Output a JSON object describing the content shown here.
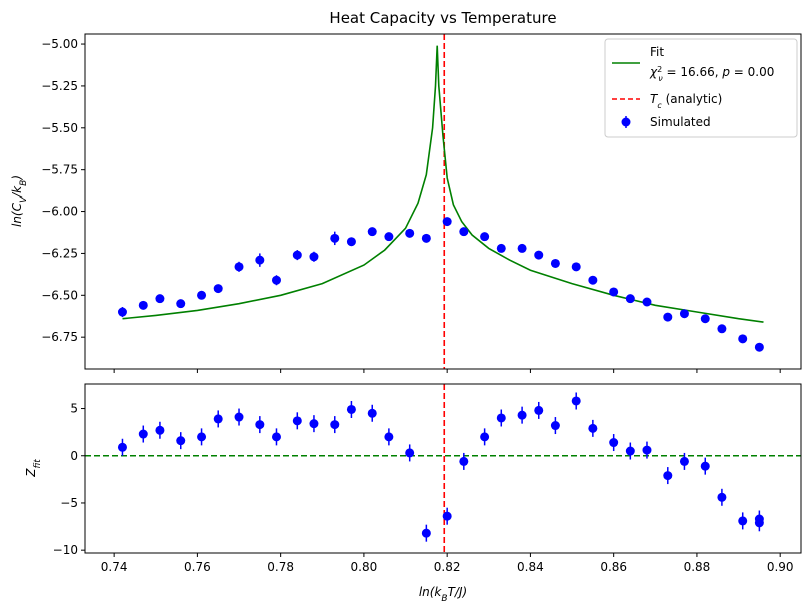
{
  "colors": {
    "fit": "#008000",
    "tc": "#ff0000",
    "sim": "#0000ff",
    "zero": "#008000"
  },
  "chart_data": [
    {
      "type": "scatter",
      "title": "Heat Capacity vs Temperature",
      "xlabel": "",
      "ylabel": "ln(C_V/k_B)",
      "xlim": [
        0.733,
        0.905
      ],
      "ylim": [
        -6.94,
        -4.94
      ],
      "yticks": [
        -6.75,
        -6.5,
        -6.25,
        -6.0,
        -5.75,
        -5.5,
        -5.25,
        -5.0
      ],
      "ytick_labels": [
        "−6.75",
        "−6.50",
        "−6.25",
        "−6.00",
        "−5.75",
        "−5.50",
        "−5.25",
        "−5.00"
      ],
      "xticks": [
        0.74,
        0.76,
        0.78,
        0.8,
        0.82,
        0.84,
        0.86,
        0.88,
        0.9
      ],
      "legend": {
        "position": "top-right",
        "fit_label": "Fit",
        "fit_stats": "χ²_ν = 16.66, p = 0.00",
        "tc_label": "T_c (analytic)",
        "sim_label": "Simulated"
      },
      "tc": 0.8193,
      "simulated": {
        "x": [
          0.742,
          0.747,
          0.751,
          0.756,
          0.761,
          0.765,
          0.77,
          0.775,
          0.779,
          0.784,
          0.788,
          0.793,
          0.797,
          0.802,
          0.806,
          0.811,
          0.815,
          0.82,
          0.824,
          0.829,
          0.833,
          0.838,
          0.842,
          0.846,
          0.851,
          0.855,
          0.86,
          0.864,
          0.868,
          0.873,
          0.877,
          0.882,
          0.886,
          0.891,
          0.895
        ],
        "y": [
          -6.6,
          -6.56,
          -6.52,
          -6.55,
          -6.5,
          -6.46,
          -6.33,
          -6.29,
          -6.41,
          -6.26,
          -6.27,
          -6.16,
          -6.18,
          -6.12,
          -6.15,
          -6.13,
          -6.16,
          -6.06,
          -6.12,
          -6.15,
          -6.22,
          -6.22,
          -6.26,
          -6.31,
          -6.33,
          -6.41,
          -6.48,
          -6.52,
          -6.54,
          -6.63,
          -6.61,
          -6.64,
          -6.7,
          -6.76,
          -6.81
        ],
        "yerr": [
          0.03,
          0.02,
          0.02,
          0.02,
          0.02,
          0.02,
          0.03,
          0.04,
          0.03,
          0.03,
          0.03,
          0.04,
          0.02,
          0.02,
          0.02,
          0.02,
          0.02,
          0.02,
          0.02,
          0.02,
          0.02,
          0.02,
          0.02,
          0.02,
          0.02,
          0.02,
          0.02,
          0.02,
          0.02,
          0.02,
          0.02,
          0.02,
          0.02,
          0.02,
          0.02
        ]
      },
      "fit": {
        "x": [
          0.742,
          0.75,
          0.76,
          0.77,
          0.78,
          0.79,
          0.8,
          0.805,
          0.81,
          0.813,
          0.815,
          0.8165,
          0.8172,
          0.8176,
          0.818,
          0.819,
          0.82,
          0.8215,
          0.8235,
          0.826,
          0.83,
          0.835,
          0.84,
          0.85,
          0.86,
          0.87,
          0.88,
          0.89,
          0.896
        ],
        "y": [
          -6.64,
          -6.62,
          -6.59,
          -6.55,
          -6.5,
          -6.43,
          -6.32,
          -6.23,
          -6.1,
          -5.95,
          -5.78,
          -5.5,
          -5.25,
          -5.01,
          -5.25,
          -5.55,
          -5.8,
          -5.96,
          -6.06,
          -6.14,
          -6.22,
          -6.29,
          -6.35,
          -6.43,
          -6.5,
          -6.56,
          -6.6,
          -6.64,
          -6.66
        ]
      }
    },
    {
      "type": "scatter",
      "xlabel": "ln(k_B T/J)",
      "ylabel": "Z_fit",
      "xlim": [
        0.733,
        0.905
      ],
      "ylim": [
        -10.3,
        7.6
      ],
      "yticks": [
        -10,
        -5,
        0,
        5
      ],
      "ytick_labels": [
        "−10",
        "−5",
        "0",
        "5"
      ],
      "xticks": [
        0.74,
        0.76,
        0.78,
        0.8,
        0.82,
        0.84,
        0.86,
        0.88,
        0.9
      ],
      "xtick_labels": [
        "0.74",
        "0.76",
        "0.78",
        "0.80",
        "0.82",
        "0.84",
        "0.86",
        "0.88",
        "0.90"
      ],
      "residuals": {
        "x": [
          0.742,
          0.747,
          0.751,
          0.756,
          0.761,
          0.765,
          0.77,
          0.775,
          0.779,
          0.784,
          0.788,
          0.793,
          0.797,
          0.802,
          0.806,
          0.811,
          0.815,
          0.82,
          0.824,
          0.829,
          0.833,
          0.838,
          0.842,
          0.846,
          0.851,
          0.855,
          0.86,
          0.864,
          0.868,
          0.873,
          0.877,
          0.882,
          0.886,
          0.891,
          0.895
        ],
        "y": [
          0.9,
          2.3,
          2.7,
          1.6,
          2.0,
          3.9,
          4.1,
          3.3,
          2.0,
          3.7,
          3.4,
          3.3,
          4.9,
          4.5,
          2.0,
          0.3,
          -8.2,
          -6.4,
          -0.6,
          2.0,
          4.0,
          4.3,
          4.8,
          3.2,
          5.8,
          2.9,
          1.4,
          0.5,
          0.6,
          -2.1,
          -0.6,
          -1.1,
          -4.4,
          -6.9,
          -6.7
        ],
        "yerr": [
          0.9,
          0.9,
          0.9,
          0.9,
          0.9,
          0.9,
          0.9,
          0.9,
          0.9,
          0.9,
          0.9,
          0.9,
          0.9,
          0.9,
          0.9,
          0.9,
          0.9,
          0.9,
          0.9,
          0.9,
          0.9,
          0.9,
          0.9,
          0.9,
          0.9,
          0.9,
          0.9,
          0.9,
          0.9,
          0.9,
          0.9,
          0.9,
          0.9,
          0.9,
          0.9
        ]
      },
      "extra_point": {
        "x": 0.895,
        "y": -7.1
      }
    }
  ]
}
